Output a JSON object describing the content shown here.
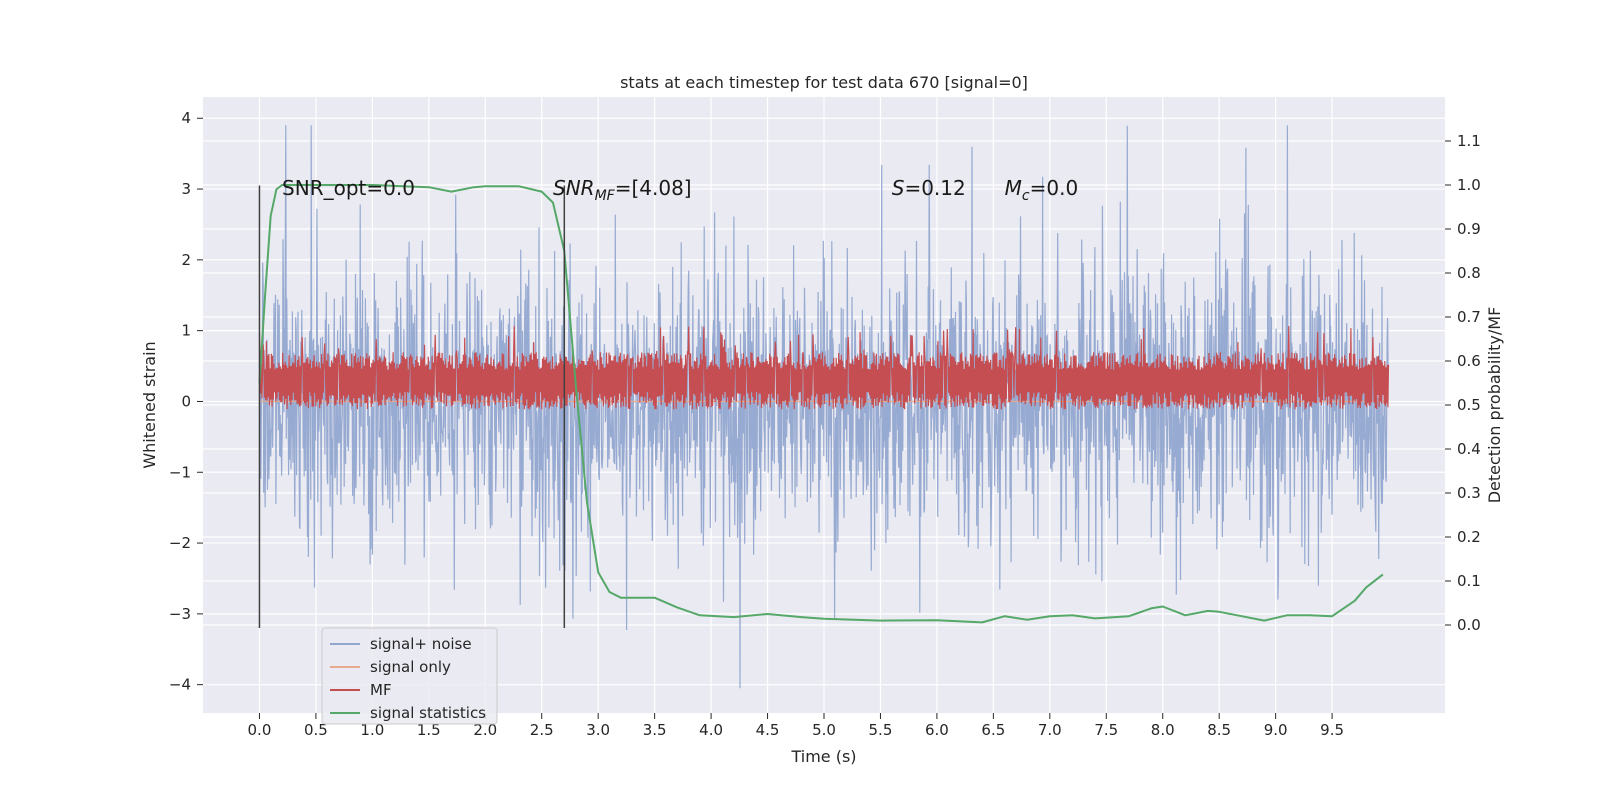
{
  "chart_data": {
    "type": "line",
    "title": "stats at each timestep for test data 670 [signal=0]",
    "xlabel": "Time (s)",
    "ylabel": "Whitened strain",
    "y2label": "Detection probability/MF",
    "xlim": [
      -0.5,
      10.5
    ],
    "ylim": [
      -4.4,
      4.3
    ],
    "y2lim": [
      -0.2,
      1.2
    ],
    "xticks": [
      "0.0",
      "0.5",
      "1.0",
      "1.5",
      "2.0",
      "2.5",
      "3.0",
      "3.5",
      "4.0",
      "4.5",
      "5.0",
      "5.5",
      "6.0",
      "6.5",
      "7.0",
      "7.5",
      "8.0",
      "8.5",
      "9.0",
      "9.5"
    ],
    "yticks": [
      "4",
      "3",
      "2",
      "1",
      "0",
      "−1",
      "−2",
      "−3",
      "−4"
    ],
    "y2ticks": [
      "1.1",
      "1.0",
      "0.9",
      "0.8",
      "0.7",
      "0.6",
      "0.5",
      "0.4",
      "0.3",
      "0.2",
      "0.1",
      "0.0"
    ],
    "grid": true,
    "legend_position": "lower-left",
    "background": "#eaeaf2",
    "annotations": [
      {
        "text": "SNR_opt=0.0",
        "x": 0.2,
        "y": 3.0
      },
      {
        "text_parts": [
          "SNR",
          "MF",
          "=[4.08]"
        ],
        "x": 2.6,
        "y": 3.0
      },
      {
        "text_parts": [
          "S",
          "=0.12"
        ],
        "x": 5.6,
        "y": 3.0
      },
      {
        "text_parts": [
          "M",
          "c",
          "=0.0"
        ],
        "x": 6.6,
        "y": 3.0
      }
    ],
    "vlines": [
      {
        "x": 0.0,
        "ymin": -3.2,
        "ymax": 3.05
      },
      {
        "x": 2.7,
        "ymin": -3.2,
        "ymax": 3.05
      }
    ],
    "series": [
      {
        "name": "signal+ noise",
        "color": "#92a7cf",
        "axis": "left",
        "x_range": [
          0.0,
          10.0
        ],
        "envelope_upper": 1.6,
        "envelope_lower": -1.6,
        "peak_max": 3.9,
        "peak_min": -4.05
      },
      {
        "name": "signal only",
        "color": "#e8a98c",
        "axis": "left",
        "x": [
          0.0,
          10.0
        ],
        "y": [
          0.0,
          0.0
        ]
      },
      {
        "name": "MF",
        "color": "#c44e52",
        "axis": "right",
        "x_range": [
          0.0,
          10.0
        ],
        "band": [
          0.51,
          0.6
        ],
        "spike_max": 0.68
      },
      {
        "name": "signal statistics",
        "color": "#55a868",
        "axis": "right",
        "x": [
          0.0,
          0.05,
          0.1,
          0.15,
          0.2,
          0.5,
          1.0,
          1.5,
          1.7,
          1.9,
          2.0,
          2.3,
          2.5,
          2.6,
          2.7,
          2.8,
          2.9,
          3.0,
          3.1,
          3.2,
          3.5,
          3.7,
          3.9,
          4.2,
          4.5,
          4.8,
          5.0,
          5.5,
          6.0,
          6.4,
          6.6,
          6.8,
          7.0,
          7.2,
          7.4,
          7.7,
          7.9,
          8.0,
          8.2,
          8.4,
          8.5,
          8.7,
          8.9,
          9.1,
          9.3,
          9.5,
          9.7,
          9.8,
          9.95
        ],
        "y": [
          0.55,
          0.75,
          0.93,
          0.99,
          1.0,
          1.0,
          1.0,
          0.995,
          0.985,
          0.995,
          0.997,
          0.997,
          0.985,
          0.96,
          0.85,
          0.55,
          0.28,
          0.12,
          0.075,
          0.062,
          0.062,
          0.04,
          0.022,
          0.018,
          0.025,
          0.018,
          0.014,
          0.01,
          0.011,
          0.006,
          0.02,
          0.012,
          0.02,
          0.022,
          0.015,
          0.02,
          0.038,
          0.042,
          0.022,
          0.032,
          0.03,
          0.02,
          0.01,
          0.022,
          0.022,
          0.02,
          0.055,
          0.085,
          0.115
        ]
      }
    ]
  }
}
